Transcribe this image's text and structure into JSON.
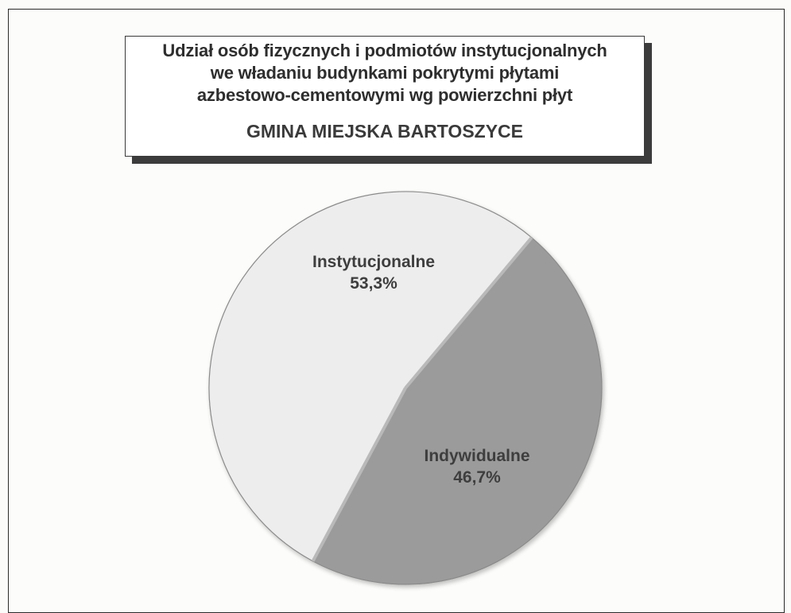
{
  "chart_data": {
    "type": "pie",
    "title": "Udział osób fizycznych i podmiotów instytucjonalnych we władaniu budynkami pokrytymi płytami azbestowo-cementowymi wg powierzchni płyt",
    "title_lines": [
      "Udział osób fizycznych i podmiotów instytucjonalnych",
      "we władaniu budynkami pokrytymi płytami",
      "azbestowo-cementowymi wg powierzchni płyt"
    ],
    "subtitle": "GMINA MIEJSKA BARTOSZYCE",
    "slices": [
      {
        "label": "Instytucjonalne",
        "value": 53.3,
        "value_label": "53,3%",
        "color": "#ededed"
      },
      {
        "label": "Indywidualne",
        "value": 46.7,
        "value_label": "46,7%",
        "color": "#9b9b9b"
      }
    ],
    "legend": "none"
  }
}
